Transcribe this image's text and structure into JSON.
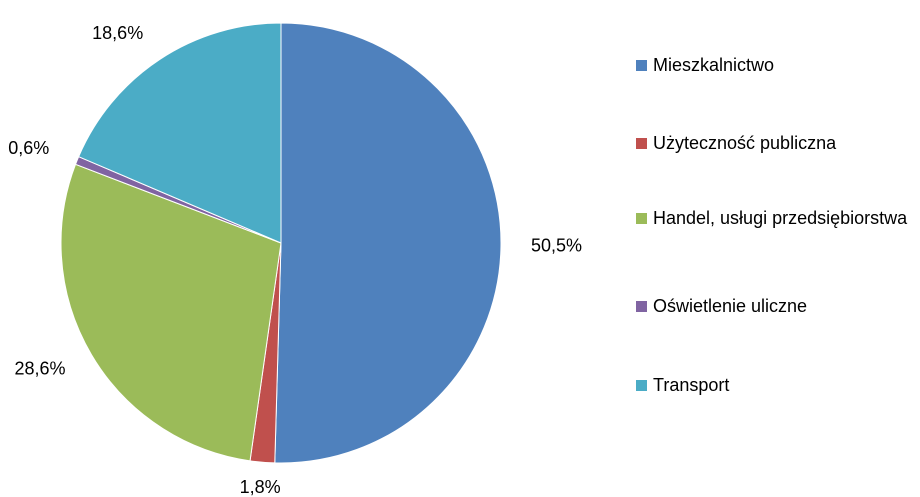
{
  "chart_data": {
    "type": "pie",
    "categories": [
      "Mieszkalnictwo",
      "Użyteczność publiczna",
      "Handel, usługi przedsiębiorstwa",
      "Oświetlenie uliczne",
      "Transport"
    ],
    "values": [
      50.5,
      1.8,
      28.6,
      0.6,
      18.6
    ],
    "value_labels": [
      "50,5%",
      "1,8%",
      "28,6%",
      "0,6%",
      "18,6%"
    ],
    "colors": [
      "#4f81bd",
      "#c0504d",
      "#9bbb59",
      "#8064a2",
      "#4bacc6"
    ],
    "legend": "right"
  }
}
